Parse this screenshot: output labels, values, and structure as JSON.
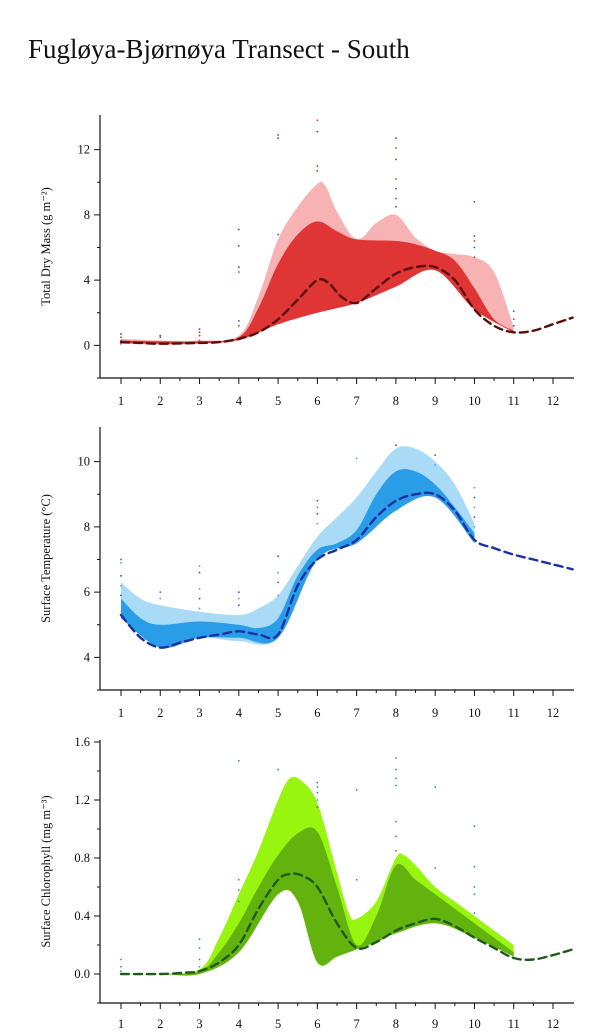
{
  "page": {
    "title": "Fugløya-Bjørnøya Transect - South"
  },
  "chart_data": [
    {
      "type": "area",
      "title": "",
      "xlabel": "",
      "ylabel": "Total Dry Mass (g m⁻²)",
      "x_ticks": [
        1,
        2,
        3,
        4,
        5,
        6,
        7,
        8,
        9,
        10,
        11,
        12
      ],
      "y_ticks": [
        0,
        4,
        8,
        12
      ],
      "xlim": [
        0.55,
        12.5
      ],
      "ylim": [
        -2,
        14
      ],
      "colors": {
        "outer": "#f7b3b3",
        "inner": "#e03535",
        "line": "#5a0e0e",
        "points": [
          "#c0392b",
          "#3a4fc8"
        ]
      },
      "series": [
        {
          "role": "outer-band-upper",
          "x": [
            1,
            2,
            3,
            4,
            4.5,
            5,
            5.5,
            6,
            6.2,
            6.5,
            7,
            7.5,
            8,
            8.5,
            9,
            9.5,
            10,
            10.5,
            11
          ],
          "y": [
            0.4,
            0.3,
            0.3,
            0.6,
            3.0,
            6.5,
            8.5,
            9.9,
            9.8,
            8.2,
            6.5,
            7.5,
            8.0,
            6.6,
            5.8,
            5.6,
            5.4,
            4.5,
            1.1
          ]
        },
        {
          "role": "outer-band-lower",
          "x": [
            1,
            2,
            3,
            4,
            5,
            6,
            7,
            8,
            9,
            10,
            11
          ],
          "y": [
            0.1,
            0.05,
            0.1,
            0.3,
            1.3,
            2.0,
            2.6,
            3.6,
            4.6,
            2.2,
            0.8
          ]
        },
        {
          "role": "inner-band-upper",
          "x": [
            1,
            2,
            3,
            4,
            4.5,
            5,
            5.5,
            6,
            6.5,
            7,
            8,
            8.5,
            9,
            9.5,
            10,
            10.5,
            11
          ],
          "y": [
            0.3,
            0.25,
            0.25,
            0.5,
            2.3,
            5.0,
            6.8,
            7.6,
            7.0,
            6.5,
            6.4,
            6.2,
            5.8,
            5.2,
            3.5,
            1.6,
            0.9
          ]
        },
        {
          "role": "inner-band-lower",
          "x": [
            1,
            2,
            3,
            4,
            5,
            6,
            7,
            8,
            9,
            10,
            11
          ],
          "y": [
            0.15,
            0.1,
            0.12,
            0.35,
            1.3,
            2.0,
            2.6,
            3.6,
            4.6,
            2.2,
            0.8
          ]
        },
        {
          "role": "mean-dashed",
          "x": [
            1,
            1.5,
            2,
            3,
            3.5,
            4,
            4.5,
            5,
            5.5,
            6,
            6.3,
            6.6,
            7,
            7.5,
            8,
            8.5,
            9,
            9.5,
            10,
            10.5,
            11,
            11.5,
            12,
            12.5
          ],
          "y": [
            0.2,
            0.15,
            0.1,
            0.15,
            0.2,
            0.4,
            0.8,
            1.6,
            2.8,
            4.0,
            3.8,
            3.0,
            2.6,
            3.5,
            4.4,
            4.8,
            4.8,
            4.0,
            2.2,
            1.2,
            0.8,
            0.9,
            1.3,
            1.7
          ]
        }
      ],
      "points": [
        {
          "x": 1,
          "y": 0.1
        },
        {
          "x": 1,
          "y": 0.3
        },
        {
          "x": 1,
          "y": 0.5
        },
        {
          "x": 1,
          "y": 0.7
        },
        {
          "x": 2,
          "y": 0.5
        },
        {
          "x": 2,
          "y": 0.6
        },
        {
          "x": 3,
          "y": 0.3
        },
        {
          "x": 3,
          "y": 0.6
        },
        {
          "x": 3,
          "y": 0.8
        },
        {
          "x": 3,
          "y": 1.0
        },
        {
          "x": 4,
          "y": 1.2
        },
        {
          "x": 4,
          "y": 1.5
        },
        {
          "x": 4,
          "y": 4.5
        },
        {
          "x": 4,
          "y": 4.8
        },
        {
          "x": 4,
          "y": 6.1
        },
        {
          "x": 4,
          "y": 7.1
        },
        {
          "x": 5,
          "y": 6.8
        },
        {
          "x": 5,
          "y": 12.7
        },
        {
          "x": 5,
          "y": 12.9
        },
        {
          "x": 6,
          "y": 10.7
        },
        {
          "x": 6,
          "y": 11.0
        },
        {
          "x": 6,
          "y": 13.1
        },
        {
          "x": 6,
          "y": 13.8
        },
        {
          "x": 8,
          "y": 8.5
        },
        {
          "x": 8,
          "y": 9.0
        },
        {
          "x": 8,
          "y": 9.6
        },
        {
          "x": 8,
          "y": 10.2
        },
        {
          "x": 8,
          "y": 11.4
        },
        {
          "x": 8,
          "y": 12.1
        },
        {
          "x": 8,
          "y": 12.7
        },
        {
          "x": 10,
          "y": 5.4
        },
        {
          "x": 10,
          "y": 6.0
        },
        {
          "x": 10,
          "y": 6.4
        },
        {
          "x": 10,
          "y": 6.7
        },
        {
          "x": 10,
          "y": 8.8
        },
        {
          "x": 11,
          "y": 1.2
        },
        {
          "x": 11,
          "y": 1.6
        },
        {
          "x": 11,
          "y": 2.1
        }
      ]
    },
    {
      "type": "area",
      "title": "",
      "xlabel": "",
      "ylabel": "Surface Temperature (°C)",
      "x_ticks": [
        1,
        2,
        3,
        4,
        5,
        6,
        7,
        8,
        9,
        10,
        11,
        12
      ],
      "y_ticks": [
        4,
        6,
        8,
        10
      ],
      "xlim": [
        0.55,
        12.5
      ],
      "ylim": [
        3,
        11
      ],
      "colors": {
        "outer": "#a9dbf7",
        "inner": "#2a9de8",
        "line": "#1f2ea3",
        "points": [
          "#3a4fc8",
          "#5b9be0"
        ]
      },
      "series": [
        {
          "role": "outer-band-upper",
          "x": [
            1,
            1.5,
            2,
            3,
            4,
            4.5,
            5,
            5.5,
            6,
            6.5,
            7,
            7.5,
            8,
            8.5,
            9,
            9.5,
            10
          ],
          "y": [
            6.3,
            5.8,
            5.6,
            5.4,
            5.3,
            5.5,
            5.9,
            6.8,
            7.7,
            8.3,
            8.9,
            9.7,
            10.4,
            10.4,
            10.0,
            9.3,
            8.1
          ]
        },
        {
          "role": "outer-band-lower",
          "x": [
            1,
            2,
            3,
            4,
            5,
            6,
            7,
            8,
            9,
            10
          ],
          "y": [
            5.2,
            4.3,
            4.6,
            4.5,
            4.6,
            7.0,
            7.5,
            8.5,
            8.9,
            7.5
          ]
        },
        {
          "role": "inner-band-upper",
          "x": [
            1,
            1.5,
            2,
            3,
            4,
            4.5,
            5,
            5.5,
            6,
            6.5,
            7,
            7.5,
            8,
            8.5,
            9,
            9.5,
            10
          ],
          "y": [
            5.8,
            5.2,
            5.0,
            5.1,
            5.0,
            4.9,
            5.2,
            6.5,
            7.3,
            7.5,
            7.9,
            9.0,
            9.7,
            9.7,
            9.3,
            8.6,
            7.8
          ]
        },
        {
          "role": "inner-band-lower",
          "x": [
            1,
            2,
            3,
            4,
            5,
            6,
            7,
            8,
            9,
            10
          ],
          "y": [
            5.2,
            4.3,
            4.6,
            4.6,
            4.6,
            7.0,
            7.5,
            8.5,
            8.9,
            7.5
          ]
        },
        {
          "role": "mean-dashed",
          "x": [
            1,
            1.5,
            2,
            2.5,
            3,
            3.5,
            4,
            4.5,
            5,
            5.5,
            6,
            6.5,
            7,
            7.5,
            8,
            8.5,
            9,
            9.5,
            10,
            10.5,
            11,
            11.5,
            12,
            12.5
          ],
          "y": [
            5.3,
            4.6,
            4.3,
            4.45,
            4.6,
            4.7,
            4.8,
            4.7,
            4.7,
            6.2,
            7.0,
            7.3,
            7.6,
            8.3,
            8.8,
            9.0,
            9.0,
            8.5,
            7.6,
            7.35,
            7.15,
            7.0,
            6.85,
            6.7
          ]
        }
      ],
      "points": [
        {
          "x": 1,
          "y": 5.9
        },
        {
          "x": 1,
          "y": 6.2
        },
        {
          "x": 1,
          "y": 6.5
        },
        {
          "x": 1,
          "y": 6.9
        },
        {
          "x": 1,
          "y": 7.0
        },
        {
          "x": 2,
          "y": 5.8
        },
        {
          "x": 2,
          "y": 6.0
        },
        {
          "x": 3,
          "y": 5.5
        },
        {
          "x": 3,
          "y": 5.8
        },
        {
          "x": 3,
          "y": 6.1
        },
        {
          "x": 3,
          "y": 6.6
        },
        {
          "x": 3,
          "y": 6.8
        },
        {
          "x": 4,
          "y": 5.6
        },
        {
          "x": 4,
          "y": 5.8
        },
        {
          "x": 4,
          "y": 6.0
        },
        {
          "x": 5,
          "y": 5.9
        },
        {
          "x": 5,
          "y": 6.3
        },
        {
          "x": 5,
          "y": 6.6
        },
        {
          "x": 5,
          "y": 7.1
        },
        {
          "x": 6,
          "y": 8.1
        },
        {
          "x": 6,
          "y": 8.4
        },
        {
          "x": 6,
          "y": 8.6
        },
        {
          "x": 6,
          "y": 8.8
        },
        {
          "x": 7,
          "y": 10.1
        },
        {
          "x": 8,
          "y": 10.5
        },
        {
          "x": 9,
          "y": 9.9
        },
        {
          "x": 9,
          "y": 10.2
        },
        {
          "x": 10,
          "y": 8.0
        },
        {
          "x": 10,
          "y": 8.3
        },
        {
          "x": 10,
          "y": 8.6
        },
        {
          "x": 10,
          "y": 8.9
        },
        {
          "x": 10,
          "y": 9.2
        }
      ]
    },
    {
      "type": "area",
      "title": "",
      "xlabel": "",
      "ylabel": "Surface Chlorophyll (mg m⁻³)",
      "x_ticks": [
        1,
        2,
        3,
        4,
        5,
        6,
        7,
        8,
        9,
        10,
        11,
        12
      ],
      "y_ticks": [
        "0.0",
        "0.4",
        "0.8",
        "1.2",
        "1.6"
      ],
      "y_tick_values": [
        0,
        0.4,
        0.8,
        1.2,
        1.6
      ],
      "xlim": [
        0.55,
        12.5
      ],
      "ylim": [
        -0.2,
        1.6
      ],
      "colors": {
        "outer": "#98f50f",
        "inner": "#62b30e",
        "line": "#1e5a1e",
        "points": [
          "#2f7fd1",
          "#1aa0a0"
        ]
      },
      "series": [
        {
          "role": "outer-band-upper",
          "x": [
            1,
            2,
            3,
            3.5,
            4,
            4.5,
            5,
            5.3,
            5.6,
            6,
            6.5,
            6.8,
            7,
            7.5,
            8,
            8.2,
            8.5,
            9,
            9.5,
            10,
            10.5,
            11
          ],
          "y": [
            0.0,
            0.0,
            0.03,
            0.25,
            0.55,
            0.85,
            1.2,
            1.35,
            1.33,
            1.18,
            0.7,
            0.42,
            0.38,
            0.5,
            0.8,
            0.82,
            0.75,
            0.6,
            0.5,
            0.4,
            0.3,
            0.2
          ]
        },
        {
          "role": "outer-band-lower",
          "x": [
            1,
            2,
            3,
            4,
            5,
            5.5,
            6,
            6.5,
            7,
            7.5,
            8,
            9,
            10,
            11
          ],
          "y": [
            0.0,
            0.0,
            0.0,
            0.15,
            0.55,
            0.5,
            0.08,
            0.12,
            0.17,
            0.22,
            0.28,
            0.35,
            0.25,
            0.12
          ]
        },
        {
          "role": "inner-band-upper",
          "x": [
            1,
            2,
            3,
            3.5,
            4,
            4.5,
            5,
            5.5,
            6,
            6.5,
            7,
            7.5,
            8,
            8.5,
            9,
            10,
            11
          ],
          "y": [
            0.0,
            0.0,
            0.02,
            0.15,
            0.35,
            0.6,
            0.82,
            0.97,
            0.98,
            0.6,
            0.2,
            0.4,
            0.75,
            0.65,
            0.55,
            0.35,
            0.15
          ]
        },
        {
          "role": "inner-band-lower",
          "x": [
            1,
            2,
            3,
            4,
            5,
            5.5,
            6,
            6.5,
            7,
            7.5,
            8,
            9,
            10,
            11
          ],
          "y": [
            0.0,
            0.0,
            0.0,
            0.15,
            0.55,
            0.5,
            0.08,
            0.12,
            0.17,
            0.22,
            0.28,
            0.35,
            0.25,
            0.12
          ]
        },
        {
          "role": "mean-dashed",
          "x": [
            1,
            2,
            2.7,
            3,
            3.5,
            4,
            4.5,
            5,
            5.3,
            5.6,
            6,
            6.5,
            7,
            7.5,
            8,
            8.5,
            9,
            9.5,
            10,
            10.5,
            11,
            11.5,
            12,
            12.5
          ],
          "y": [
            0.0,
            0.0,
            0.01,
            0.02,
            0.08,
            0.2,
            0.45,
            0.65,
            0.69,
            0.68,
            0.6,
            0.35,
            0.18,
            0.22,
            0.3,
            0.35,
            0.38,
            0.33,
            0.25,
            0.18,
            0.11,
            0.1,
            0.13,
            0.17
          ]
        }
      ],
      "points": [
        {
          "x": 1,
          "y": 0.02
        },
        {
          "x": 1,
          "y": 0.05
        },
        {
          "x": 1,
          "y": 0.1
        },
        {
          "x": 3,
          "y": 0.05
        },
        {
          "x": 3,
          "y": 0.1
        },
        {
          "x": 3,
          "y": 0.18
        },
        {
          "x": 3,
          "y": 0.24
        },
        {
          "x": 4,
          "y": 0.5
        },
        {
          "x": 4,
          "y": 0.58
        },
        {
          "x": 4,
          "y": 0.65
        },
        {
          "x": 4,
          "y": 1.47
        },
        {
          "x": 5,
          "y": 1.41
        },
        {
          "x": 6,
          "y": 1.15
        },
        {
          "x": 6,
          "y": 1.2
        },
        {
          "x": 6,
          "y": 1.25
        },
        {
          "x": 6,
          "y": 1.29
        },
        {
          "x": 6,
          "y": 1.32
        },
        {
          "x": 7,
          "y": 0.65
        },
        {
          "x": 7,
          "y": 1.27
        },
        {
          "x": 8,
          "y": 0.85
        },
        {
          "x": 8,
          "y": 0.95
        },
        {
          "x": 8,
          "y": 1.05
        },
        {
          "x": 8,
          "y": 1.3
        },
        {
          "x": 8,
          "y": 1.35
        },
        {
          "x": 8,
          "y": 1.41
        },
        {
          "x": 8,
          "y": 1.49
        },
        {
          "x": 9,
          "y": 0.73
        },
        {
          "x": 9,
          "y": 1.29
        },
        {
          "x": 10,
          "y": 0.42
        },
        {
          "x": 10,
          "y": 0.55
        },
        {
          "x": 10,
          "y": 0.6
        },
        {
          "x": 10,
          "y": 0.74
        },
        {
          "x": 10,
          "y": 1.02
        }
      ]
    }
  ]
}
